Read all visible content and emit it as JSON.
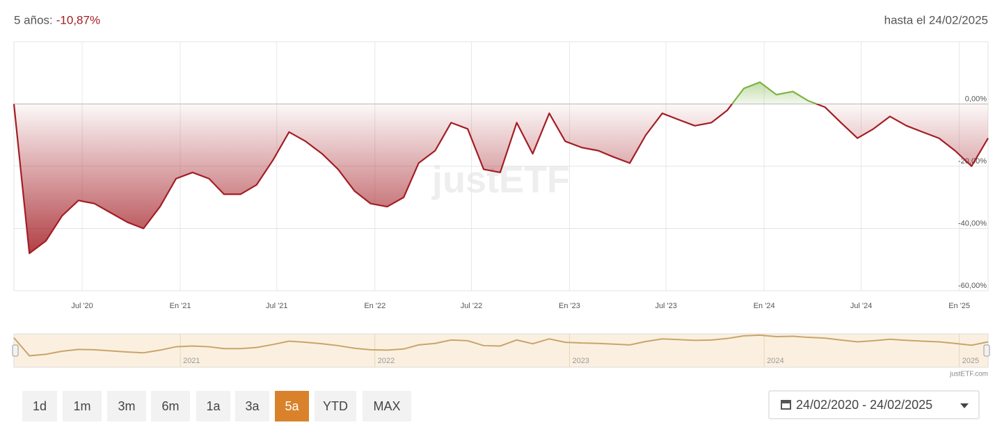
{
  "header": {
    "period_label": "5 años:",
    "period_return": "-10,87%",
    "as_of": "hasta el 24/02/2025"
  },
  "chart_data": {
    "type": "line",
    "watermark": "justETF",
    "x": [
      "2020-02-24",
      "2020-03-24",
      "2020-04-24",
      "2020-05-24",
      "2020-06-24",
      "2020-07-24",
      "2020-08-24",
      "2020-09-24",
      "2020-10-24",
      "2020-11-24",
      "2020-12-24",
      "2021-01-24",
      "2021-02-24",
      "2021-03-24",
      "2021-04-24",
      "2021-05-24",
      "2021-06-24",
      "2021-07-24",
      "2021-08-24",
      "2021-09-24",
      "2021-10-24",
      "2021-11-24",
      "2021-12-24",
      "2022-01-24",
      "2022-02-24",
      "2022-03-24",
      "2022-04-24",
      "2022-05-24",
      "2022-06-24",
      "2022-07-24",
      "2022-08-24",
      "2022-09-24",
      "2022-10-24",
      "2022-11-24",
      "2022-12-24",
      "2023-01-24",
      "2023-02-24",
      "2023-03-24",
      "2023-04-24",
      "2023-05-24",
      "2023-06-24",
      "2023-07-24",
      "2023-08-24",
      "2023-09-24",
      "2023-10-24",
      "2023-11-24",
      "2023-12-24",
      "2024-01-24",
      "2024-02-24",
      "2024-03-24",
      "2024-04-24",
      "2024-05-24",
      "2024-06-24",
      "2024-07-24",
      "2024-08-24",
      "2024-09-24",
      "2024-10-24",
      "2024-11-24",
      "2024-12-24",
      "2025-01-24",
      "2025-02-24"
    ],
    "series": [
      {
        "color": "#a31d24",
        "positive_color": "#7cb342",
        "values": [
          0,
          -48,
          -44,
          -36,
          -31,
          -32,
          -35,
          -38,
          -40,
          -33,
          -24,
          -22,
          -24,
          -29,
          -29,
          -26,
          -18,
          -9,
          -12,
          -16,
          -21,
          -28,
          -32,
          -33,
          -30,
          -19,
          -15,
          -6,
          -8,
          -21,
          -22,
          -6,
          -16,
          -3,
          -12,
          -14,
          -15,
          -17,
          -19,
          -10,
          -3,
          -5,
          -7,
          -6,
          -2,
          5,
          7,
          3,
          4,
          1,
          -1,
          -6,
          -11,
          -8,
          -4,
          -7,
          -9,
          -11,
          -15,
          -20,
          -11
        ]
      }
    ],
    "xlim": [
      "2020-02-24",
      "2025-02-24"
    ],
    "ylim": [
      -60,
      20
    ],
    "xticks": [
      {
        "value": "2020-07-01",
        "label": "Jul '20"
      },
      {
        "value": "2021-01-01",
        "label": "En '21"
      },
      {
        "value": "2021-07-01",
        "label": "Jul '21"
      },
      {
        "value": "2022-01-01",
        "label": "En '22"
      },
      {
        "value": "2022-07-01",
        "label": "Jul '22"
      },
      {
        "value": "2023-01-01",
        "label": "En '23"
      },
      {
        "value": "2023-07-01",
        "label": "Jul '23"
      },
      {
        "value": "2024-01-01",
        "label": "En '24"
      },
      {
        "value": "2024-07-01",
        "label": "Jul '24"
      },
      {
        "value": "2025-01-01",
        "label": "En '25"
      }
    ],
    "yticks": [
      {
        "value": 0,
        "label": "0,00%"
      },
      {
        "value": -20,
        "label": "-20,00%"
      },
      {
        "value": -40,
        "label": "-40,00%"
      },
      {
        "value": -60,
        "label": "-60,00%"
      }
    ],
    "grid": true,
    "navigator": {
      "color": "#c9a46a",
      "background": "#fbf0e0",
      "ticks": [
        {
          "value": "2021-01-01",
          "label": "2021"
        },
        {
          "value": "2022-01-01",
          "label": "2022"
        },
        {
          "value": "2023-01-01",
          "label": "2023"
        },
        {
          "value": "2024-01-01",
          "label": "2024"
        },
        {
          "value": "2025-01-01",
          "label": "2025"
        }
      ],
      "credit": "justETF.com"
    }
  },
  "controls": {
    "range_buttons": [
      "1d",
      "1m",
      "3m",
      "6m",
      "1a",
      "3a",
      "5a",
      "YTD",
      "MAX"
    ],
    "active_range": "5a",
    "active_color": "#d9822b",
    "date_range": "24/02/2020 - 24/02/2025"
  }
}
